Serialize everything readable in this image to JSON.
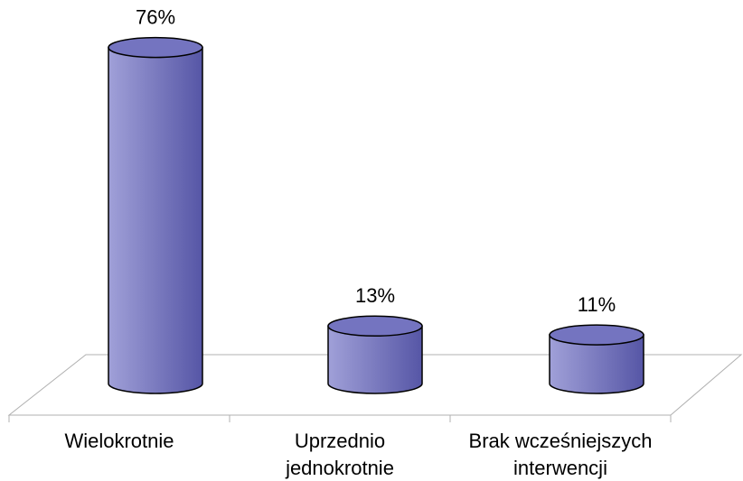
{
  "chart_data": {
    "type": "cylinder",
    "categories": [
      [
        "Wielokrotnie"
      ],
      [
        "Uprzednio",
        "jednokrotnie"
      ],
      [
        "Brak wcześniejszych",
        "interwencji"
      ]
    ],
    "values": [
      76,
      13,
      11
    ],
    "value_labels": [
      "76%",
      "13%",
      "11%"
    ],
    "color": "#7474c0"
  }
}
